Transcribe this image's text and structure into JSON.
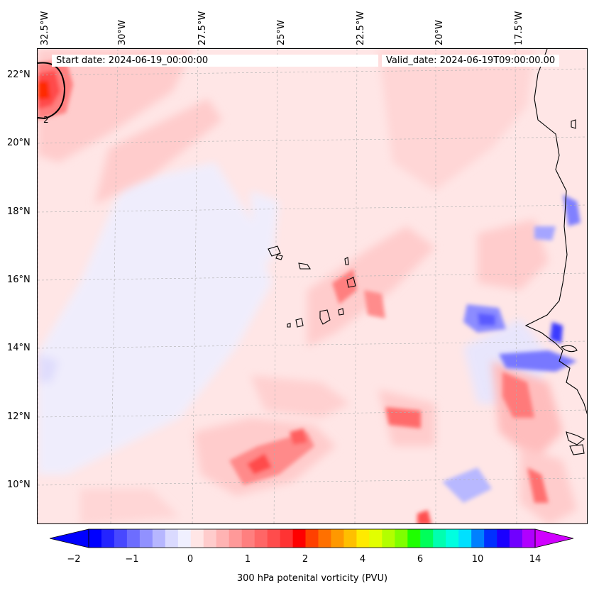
{
  "map": {
    "start_date": "Start date: 2024-06-19_00:00:00",
    "valid_date": "Valid_date: 2024-06-19T09:00:00.00",
    "lon_labels": [
      "32.5°W",
      "30°W",
      "27.5°W",
      "25°W",
      "22.5°W",
      "20°W",
      "17.5°W"
    ],
    "lat_labels": [
      "22°N",
      "20°N",
      "18°N",
      "16°N",
      "14°N",
      "12°N",
      "10°N"
    ],
    "contour_label": "2"
  },
  "colorbar": {
    "label": "300 hPa potenital vorticity (PVU)",
    "ticks": [
      "−2",
      "−1",
      "0",
      "1",
      "2",
      "4",
      "6",
      "10",
      "14"
    ],
    "colors": [
      "#0000ff",
      "#2424ff",
      "#4848ff",
      "#6d6dff",
      "#9191ff",
      "#b6b6ff",
      "#dadaff",
      "#f0f0ff",
      "#ffe6e6",
      "#ffcccc",
      "#ffb3b3",
      "#ff9999",
      "#ff7f7f",
      "#ff6666",
      "#ff4c4c",
      "#ff3333",
      "#ff0000",
      "#ff4000",
      "#ff7000",
      "#ff9800",
      "#ffbf00",
      "#ffea00",
      "#e2ff00",
      "#b2ff00",
      "#7fff00",
      "#1fff00",
      "#00ff5a",
      "#00ffb0",
      "#00ffe0",
      "#00e0ff",
      "#0080ff",
      "#0030ff",
      "#1a00ff",
      "#7000ff",
      "#b000ff"
    ]
  }
}
